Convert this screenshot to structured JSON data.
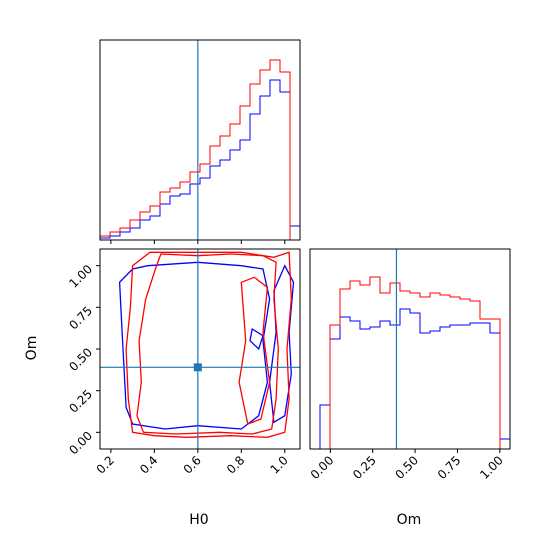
{
  "chart_data": {
    "type": "corner",
    "parameters": [
      "H0",
      "Om"
    ],
    "truth": {
      "H0": 0.6,
      "Om": 0.39
    },
    "colors": {
      "series_a": "#ff0000",
      "series_b": "#0000ff",
      "truth": "#1f77b4"
    },
    "H0_hist": {
      "xlim": [
        0.15,
        1.07
      ],
      "bin_edges": [
        0.15,
        0.196,
        0.242,
        0.288,
        0.334,
        0.38,
        0.426,
        0.472,
        0.518,
        0.564,
        0.61,
        0.656,
        0.702,
        0.748,
        0.794,
        0.84,
        0.886,
        0.932,
        0.978,
        1.024,
        1.07
      ],
      "series_a": [
        0.02,
        0.04,
        0.06,
        0.1,
        0.14,
        0.17,
        0.24,
        0.26,
        0.29,
        0.34,
        0.38,
        0.47,
        0.52,
        0.58,
        0.67,
        0.78,
        0.85,
        0.9,
        0.84,
        0.0
      ],
      "series_b": [
        0.01,
        0.02,
        0.04,
        0.06,
        0.1,
        0.12,
        0.18,
        0.22,
        0.23,
        0.28,
        0.31,
        0.37,
        0.4,
        0.45,
        0.5,
        0.63,
        0.72,
        0.8,
        0.74,
        0.07
      ],
      "yticks": [],
      "xticks": [
        0.2,
        0.4,
        0.6,
        0.8,
        1.0
      ]
    },
    "Om_hist": {
      "xlim": [
        -0.12,
        1.06
      ],
      "bin_edges": [
        -0.12,
        -0.061,
        -0.002,
        0.057,
        0.116,
        0.175,
        0.234,
        0.293,
        0.352,
        0.411,
        0.47,
        0.529,
        0.588,
        0.647,
        0.706,
        0.765,
        0.824,
        0.883,
        0.942,
        1.001,
        1.06
      ],
      "series_a": [
        0.0,
        0.0,
        0.62,
        0.8,
        0.84,
        0.82,
        0.86,
        0.78,
        0.83,
        0.79,
        0.78,
        0.76,
        0.78,
        0.77,
        0.76,
        0.75,
        0.74,
        0.65,
        0.65,
        0.0
      ],
      "series_b": [
        0.0,
        0.22,
        0.55,
        0.66,
        0.64,
        0.6,
        0.61,
        0.64,
        0.62,
        0.7,
        0.68,
        0.58,
        0.59,
        0.61,
        0.62,
        0.62,
        0.63,
        0.63,
        0.58,
        0.05
      ],
      "yticks": [],
      "xticks": [
        0.0,
        0.25,
        0.5,
        0.75,
        1.0
      ],
      "xtick_labels": [
        "0.00",
        "0.25",
        "0.50",
        "0.75",
        "1.00"
      ],
      "xlabel": "Om"
    },
    "joint": {
      "xlim": [
        0.15,
        1.07
      ],
      "ylim": [
        -0.1,
        1.1
      ],
      "xticks": [
        0.2,
        0.4,
        0.6,
        0.8,
        1.0
      ],
      "xtick_labels": [
        "0.2",
        "0.4",
        "0.6",
        "0.8",
        "1.0"
      ],
      "yticks": [
        0.0,
        0.25,
        0.5,
        0.75,
        1.0
      ],
      "ytick_labels": [
        "0.00",
        "0.25",
        "0.50",
        "0.75",
        "1.00"
      ],
      "xlabel": "H0",
      "ylabel": "Om",
      "contours_a": [
        [
          [
            0.43,
            1.07
          ],
          [
            0.6,
            1.06
          ],
          [
            0.75,
            1.07
          ],
          [
            0.9,
            1.06
          ],
          [
            0.96,
            1.02
          ],
          [
            0.95,
            0.8
          ],
          [
            0.97,
            0.5
          ],
          [
            0.96,
            0.2
          ],
          [
            0.94,
            0.02
          ],
          [
            0.85,
            -0.01
          ],
          [
            0.7,
            0.0
          ],
          [
            0.5,
            -0.01
          ],
          [
            0.35,
            0.0
          ],
          [
            0.32,
            0.1
          ],
          [
            0.34,
            0.3
          ],
          [
            0.33,
            0.55
          ],
          [
            0.36,
            0.8
          ],
          [
            0.41,
            1.0
          ],
          [
            0.43,
            1.07
          ]
        ],
        [
          [
            0.95,
            1.05
          ],
          [
            1.02,
            1.08
          ],
          [
            1.03,
            0.8
          ],
          [
            1.01,
            0.5
          ],
          [
            1.02,
            0.2
          ],
          [
            1.0,
            0.0
          ],
          [
            0.92,
            -0.03
          ],
          [
            0.75,
            -0.02
          ],
          [
            0.55,
            -0.03
          ],
          [
            0.4,
            -0.02
          ],
          [
            0.3,
            0.0
          ],
          [
            0.28,
            0.2
          ],
          [
            0.27,
            0.5
          ],
          [
            0.29,
            0.75
          ],
          [
            0.3,
            1.0
          ],
          [
            0.38,
            1.08
          ],
          [
            0.6,
            1.08
          ],
          [
            0.8,
            1.08
          ],
          [
            0.95,
            1.05
          ]
        ],
        [
          [
            0.8,
            0.9
          ],
          [
            0.86,
            0.93
          ],
          [
            0.92,
            0.87
          ],
          [
            0.9,
            0.6
          ],
          [
            0.93,
            0.3
          ],
          [
            0.89,
            0.08
          ],
          [
            0.83,
            0.05
          ],
          [
            0.79,
            0.3
          ],
          [
            0.82,
            0.55
          ],
          [
            0.8,
            0.9
          ]
        ]
      ],
      "contours_b": [
        [
          [
            0.37,
            1.0
          ],
          [
            0.6,
            1.02
          ],
          [
            0.8,
            1.0
          ],
          [
            0.9,
            0.98
          ],
          [
            0.93,
            0.8
          ],
          [
            0.9,
            0.55
          ],
          [
            0.92,
            0.3
          ],
          [
            0.88,
            0.1
          ],
          [
            0.8,
            0.02
          ],
          [
            0.6,
            0.04
          ],
          [
            0.45,
            0.02
          ],
          [
            0.3,
            0.05
          ],
          [
            0.27,
            0.15
          ],
          [
            0.26,
            0.4
          ],
          [
            0.25,
            0.65
          ],
          [
            0.24,
            0.9
          ],
          [
            0.3,
            0.98
          ],
          [
            0.37,
            1.0
          ]
        ],
        [
          [
            1.0,
            1.0
          ],
          [
            1.04,
            0.9
          ],
          [
            1.02,
            0.6
          ],
          [
            1.03,
            0.35
          ],
          [
            1.0,
            0.1
          ],
          [
            0.95,
            0.06
          ],
          [
            0.93,
            0.3
          ],
          [
            0.96,
            0.6
          ],
          [
            0.95,
            0.85
          ],
          [
            1.0,
            1.0
          ]
        ],
        [
          [
            0.85,
            0.62
          ],
          [
            0.9,
            0.58
          ],
          [
            0.88,
            0.5
          ],
          [
            0.84,
            0.55
          ],
          [
            0.85,
            0.62
          ]
        ]
      ]
    }
  }
}
